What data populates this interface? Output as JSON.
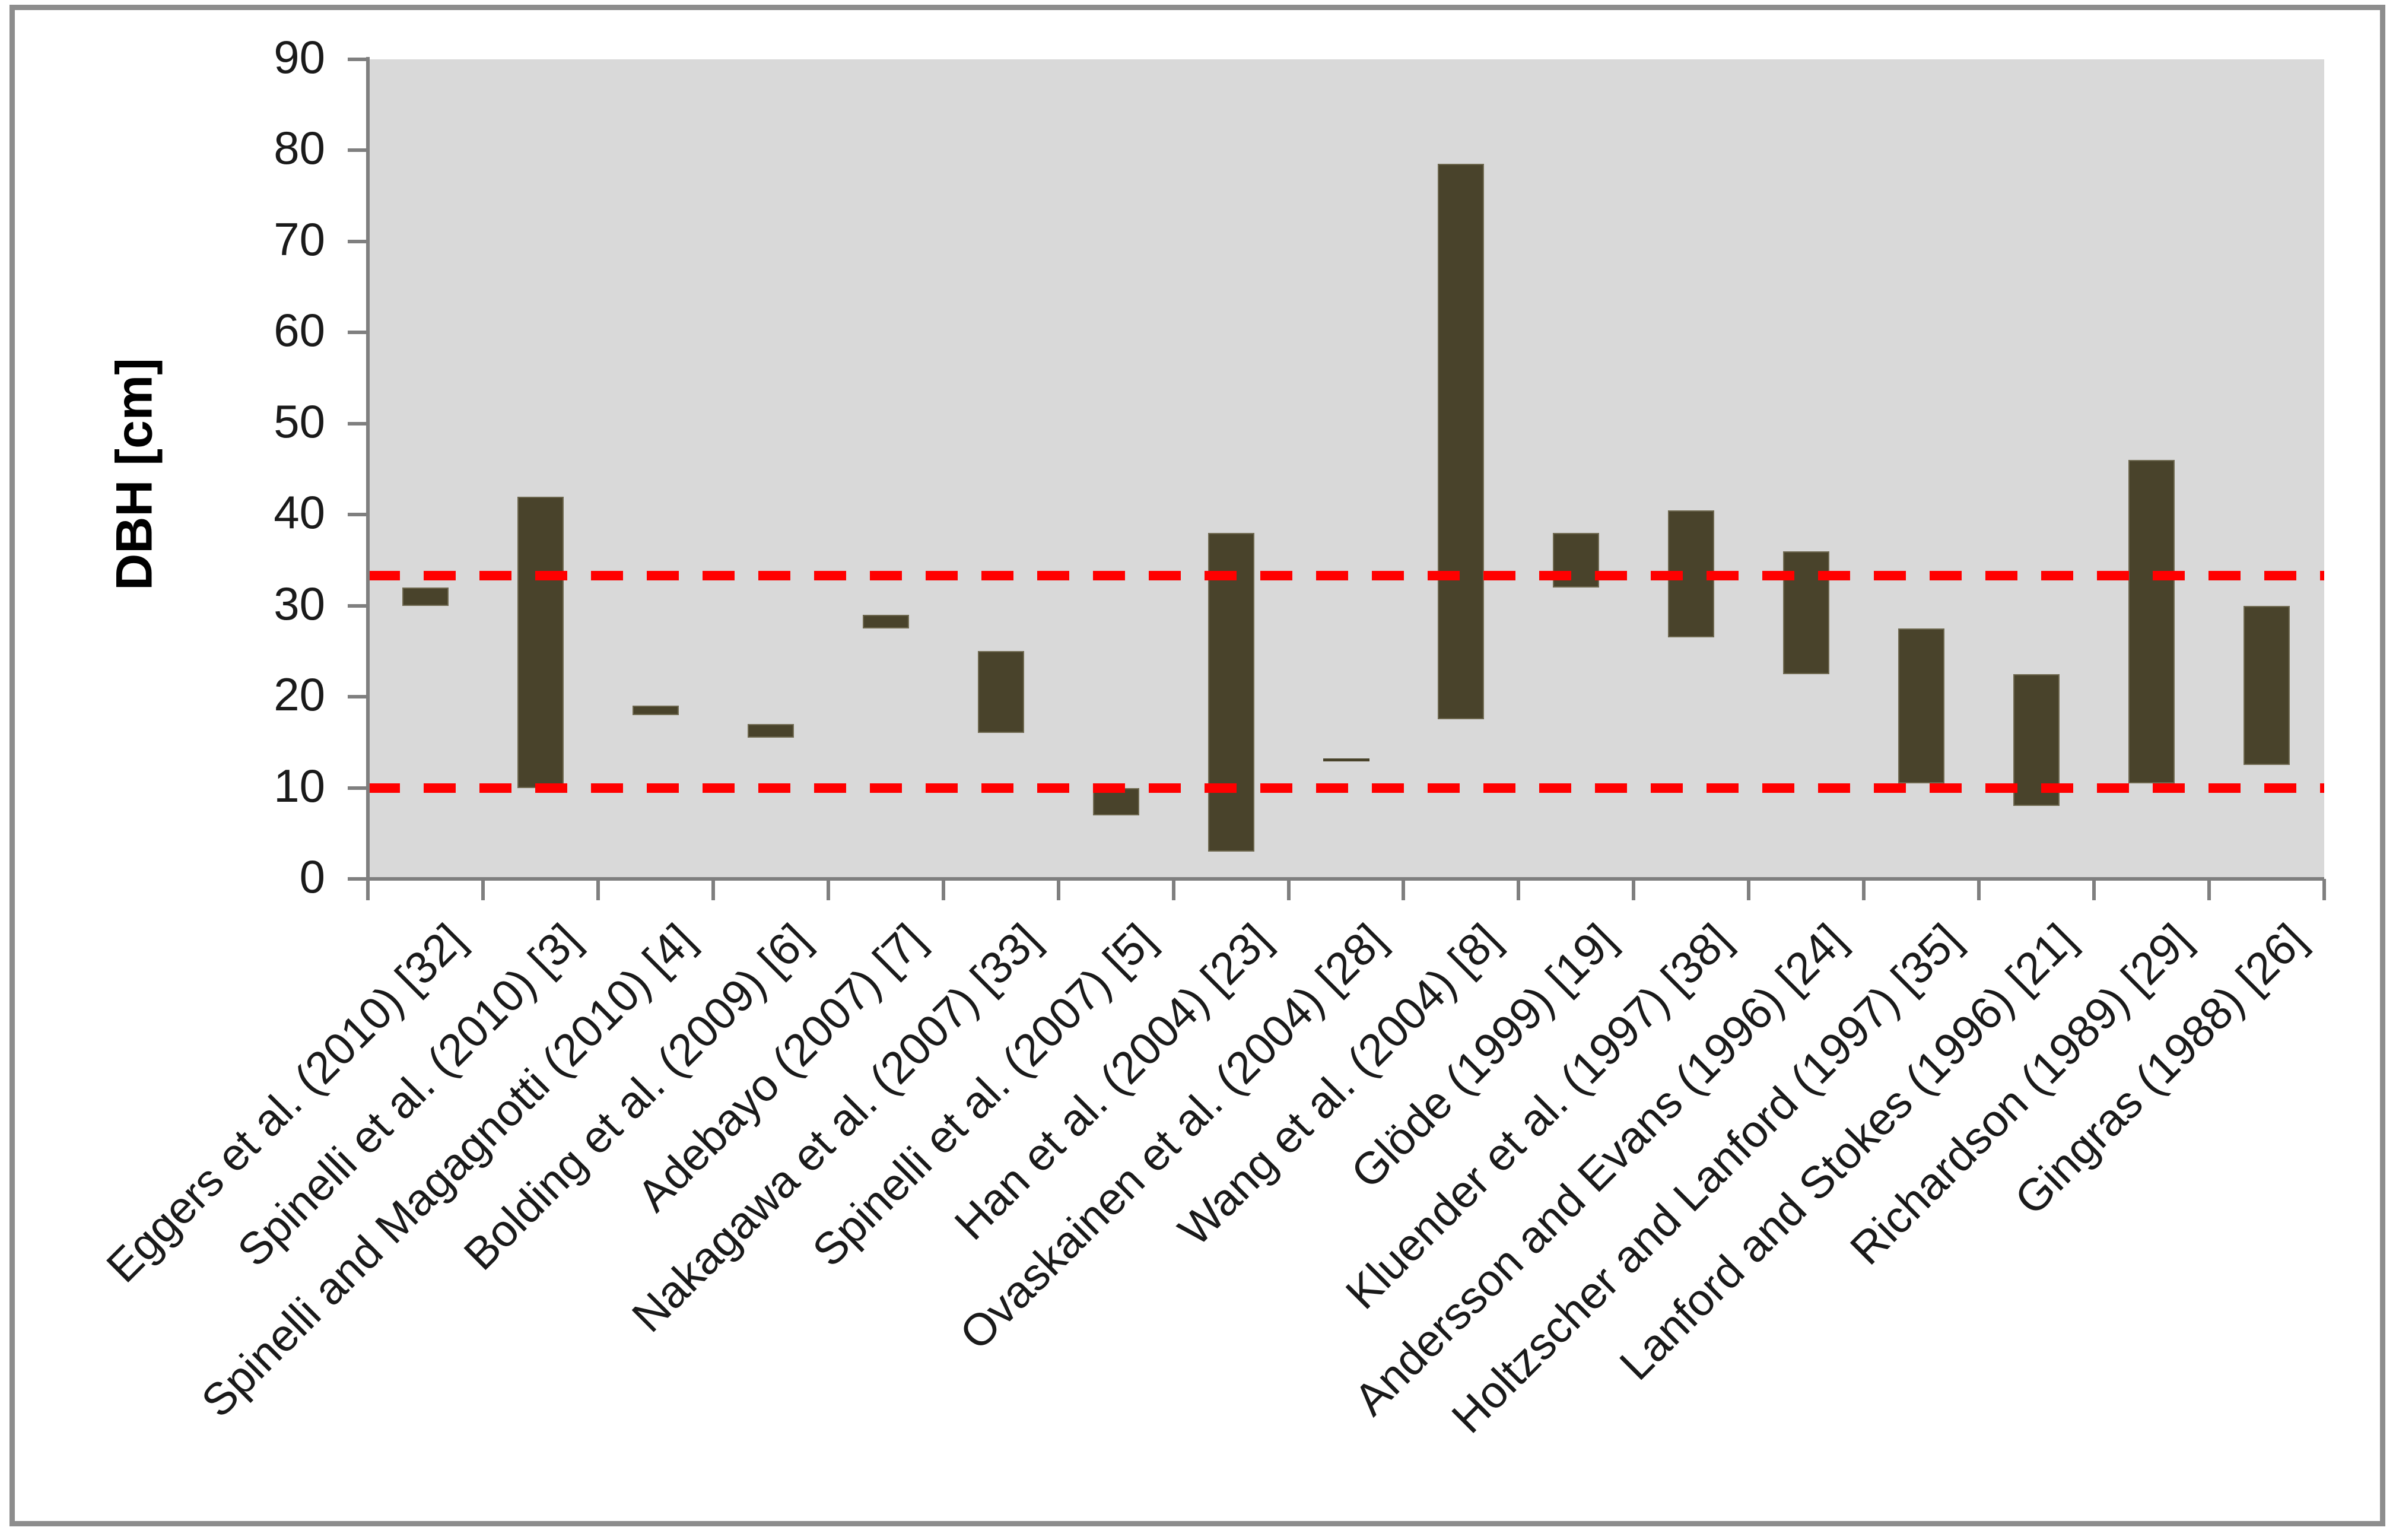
{
  "chart_data": {
    "type": "bar",
    "subtype": "floating-range-columns",
    "title": "",
    "xlabel": "",
    "ylabel": "DBH [cm]",
    "ylim": [
      0,
      90
    ],
    "yticks": [
      0,
      10,
      20,
      30,
      40,
      50,
      60,
      70,
      80,
      90
    ],
    "grid": "off",
    "legend": "none",
    "plot_background": "#D9D9D9",
    "bar_color": "#49432B",
    "bar_border_color": "#6F6950",
    "axis_color": "#7F7F7F",
    "text_color": "#1A1A1A",
    "frame_color": "#8D8D8D",
    "reference_lines": [
      {
        "value": 33.3,
        "color": "#FF0000",
        "style": "dashed"
      },
      {
        "value": 10,
        "color": "#FF0000",
        "style": "dashed"
      }
    ],
    "series": [
      {
        "label": "Eggers et al. (2010) [32]",
        "low": 30,
        "high": 32
      },
      {
        "label": "Spinelli et al. (2010) [3]",
        "low": 10,
        "high": 42
      },
      {
        "label": "Spinelli and Magagnotti (2010) [4]",
        "low": 18,
        "high": 19
      },
      {
        "label": "Bolding et al. (2009) [6]",
        "low": 15.5,
        "high": 17
      },
      {
        "label": "Adebayo (2007) [7]",
        "low": 27.5,
        "high": 29
      },
      {
        "label": "Nakagawa et al. (2007) [33]",
        "low": 16,
        "high": 25
      },
      {
        "label": "Spinelli et al. (2007) [5]",
        "low": 7,
        "high": 10
      },
      {
        "label": "Han et al. (2004) [23]",
        "low": 3,
        "high": 38
      },
      {
        "label": "Ovaskainen et al. (2004) [28]",
        "low": 12.9,
        "high": 13.2
      },
      {
        "label": "Wang et al. (2004) [8]",
        "low": 17.5,
        "high": 78.5
      },
      {
        "label": "Glöde (1999) [19]",
        "low": 32,
        "high": 38
      },
      {
        "label": "Kluender et al. (1997) [38]",
        "low": 26.5,
        "high": 40.5
      },
      {
        "label": "Andersson and Evans (1996) [24]",
        "low": 22.5,
        "high": 36
      },
      {
        "label": "Holtzscher and Lanford (1997) [35]",
        "low": 10.5,
        "high": 27.5
      },
      {
        "label": "Lanford and Stokes (1996) [21]",
        "low": 8,
        "high": 22.5
      },
      {
        "label": "Richardson (1989) [29]",
        "low": 10.5,
        "high": 46
      },
      {
        "label": "Gingras (1988) [26]",
        "low": 12.5,
        "high": 30
      }
    ]
  }
}
